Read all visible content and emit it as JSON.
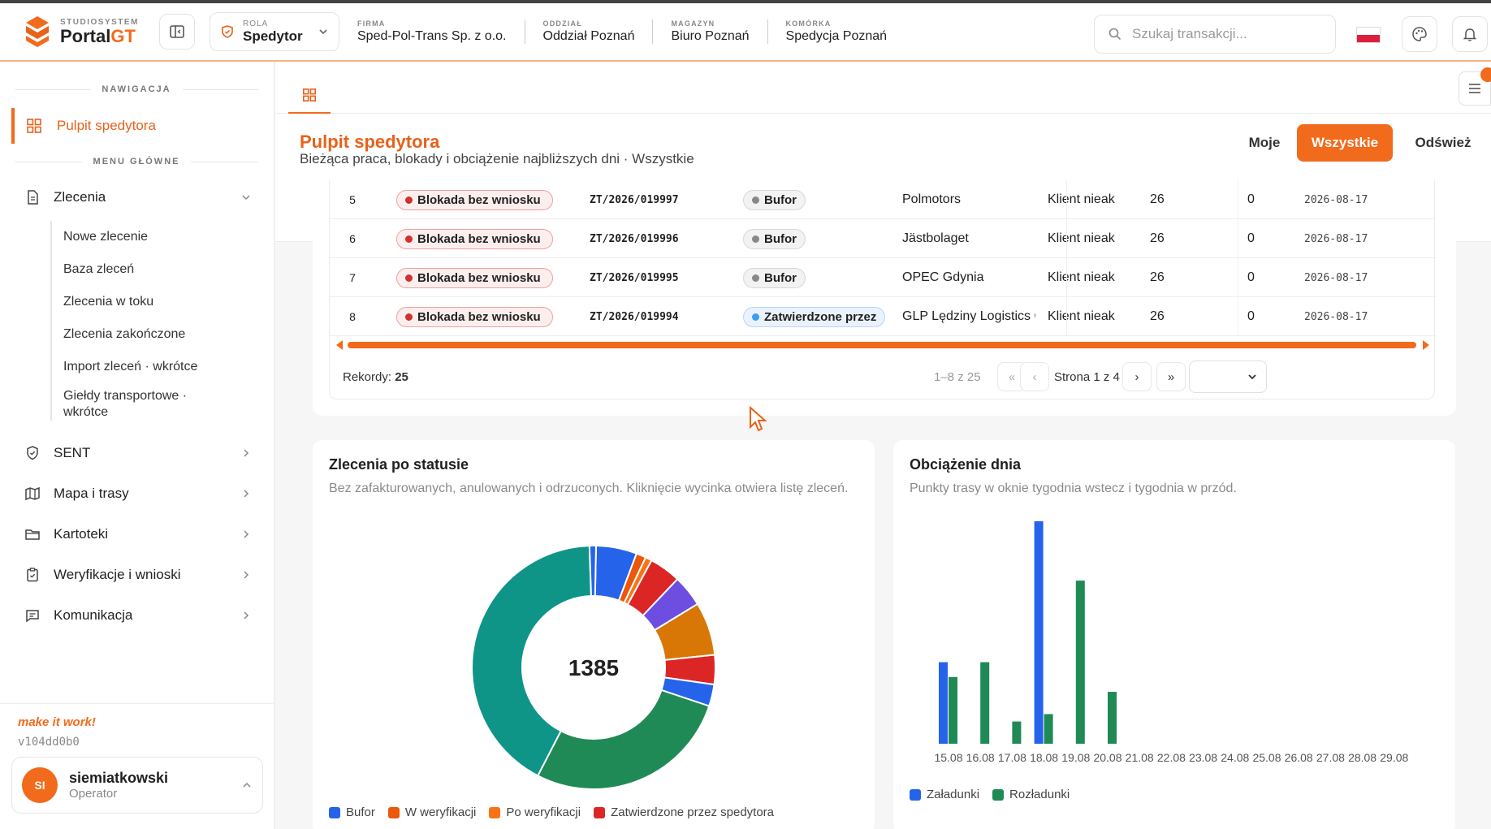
{
  "brand": {
    "small": "STUDIOSYSTEM",
    "name": "Portal",
    "name_accent": "GT"
  },
  "header": {
    "role_label": "ROLA",
    "role_value": "Spedytor",
    "firma_label": "FIRMA",
    "firma_value": "Sped-Pol-Trans Sp. z o.o.",
    "oddzial_label": "ODDZIAŁ",
    "oddzial_value": "Oddział Poznań",
    "magazyn_label": "MAGAZYN",
    "magazyn_value": "Biuro Poznań",
    "komorka_label": "KOMÓRKA",
    "komorka_value": "Spedycja Poznań",
    "search_placeholder": "Szukaj transakcji..."
  },
  "sidebar": {
    "nav_label": "NAWIGACJA",
    "active_item": "Pulpit spedytora",
    "menu_label": "MENU GŁÓWNE",
    "zlecenia": "Zlecenia",
    "sub_items": [
      "Nowe zlecenie",
      "Baza zleceń",
      "Zlecenia w toku",
      "Zlecenia zakończone",
      "Import zleceń · wkrótce",
      "Giełdy transportowe · wkrótce"
    ],
    "items": [
      "SENT",
      "Mapa i trasy",
      "Kartoteki",
      "Weryfikacje i wnioski",
      "Komunikacja"
    ],
    "motto": "make it work!",
    "version": "v104dd0b0",
    "user": {
      "initials": "SI",
      "name": "siemiatkowski",
      "role": "Operator"
    }
  },
  "page": {
    "title": "Pulpit spedytora",
    "subtitle": "Bieżąca praca, blokady i obciążenie najbliższych dni · Wszystkie",
    "btn_moje": "Moje",
    "btn_all": "Wszystkie",
    "btn_refresh": "Odśwież"
  },
  "table": {
    "rows": [
      {
        "num": "5",
        "flag": "Blokada bez wniosku",
        "zt": "ZT/2026/019997",
        "status": "Bufor",
        "client": "Polmotors",
        "kl": "Klient nieak",
        "n1": "26",
        "n2": "0",
        "date": "2026-08-17"
      },
      {
        "num": "6",
        "flag": "Blokada bez wniosku",
        "zt": "ZT/2026/019996",
        "status": "Bufor",
        "client": "Jästbolaget",
        "kl": "Klient nieak",
        "n1": "26",
        "n2": "0",
        "date": "2026-08-17"
      },
      {
        "num": "7",
        "flag": "Blokada bez wniosku",
        "zt": "ZT/2026/019995",
        "status": "Bufor",
        "client": "OPEC Gdynia",
        "kl": "Klient nieak",
        "n1": "26",
        "n2": "0",
        "date": "2026-08-17"
      },
      {
        "num": "8",
        "flag": "Blokada bez wniosku",
        "zt": "ZT/2026/019994",
        "status": "Zatwierdzone przez",
        "client": "GLP Lędziny Logistics C",
        "kl": "Klient nieak",
        "n1": "26",
        "n2": "0",
        "date": "2026-08-17"
      }
    ],
    "records_label": "Rekordy:",
    "records_value": "25",
    "range": "1–8 z 25",
    "page_text": "Strona 1 z 4"
  },
  "donut_card": {
    "title": "Zlecenia po statusie",
    "subtitle": "Bez zafakturowanych, anulowanych i odrzuconych. Kliknięcie wycinka otwiera listę zleceń.",
    "total": "1385",
    "legend": [
      {
        "label": "Bufor",
        "color": "#2563eb"
      },
      {
        "label": "W weryfikacji",
        "color": "#ea580c"
      },
      {
        "label": "Po weryfikacji",
        "color": "#f97316"
      },
      {
        "label": "Zatwierdzone przez spedytora",
        "color": "#dc2626"
      }
    ]
  },
  "bar_card": {
    "title": "Obciążenie dnia",
    "subtitle": "Punkty trasy w oknie tygodnia wstecz i tygodnia w przód.",
    "legend": [
      {
        "label": "Załadunki",
        "color": "#2563eb"
      },
      {
        "label": "Rozładunki",
        "color": "#1f8a55"
      }
    ]
  },
  "chart_data": [
    {
      "type": "pie",
      "title": "Zlecenia po statusie",
      "total": 1385,
      "slices": [
        {
          "color": "#2563eb",
          "value": 75
        },
        {
          "color": "#ea580c",
          "value": 18
        },
        {
          "color": "#f97316",
          "value": 12
        },
        {
          "color": "#dc2626",
          "value": 58
        },
        {
          "color": "#6d4ee0",
          "value": 58
        },
        {
          "color": "#d97706",
          "value": 98
        },
        {
          "color": "#dc2626",
          "value": 54
        },
        {
          "color": "#2563eb",
          "value": 40
        },
        {
          "color": "#1f8a55",
          "value": 380
        },
        {
          "color": "#0f9488",
          "value": 580
        },
        {
          "color": "#2563eb",
          "value": 12
        }
      ]
    },
    {
      "type": "bar",
      "title": "Obciążenie dnia",
      "categories": [
        "15.08",
        "16.08",
        "17.08",
        "18.08",
        "19.08",
        "20.08",
        "21.08",
        "22.08",
        "23.08",
        "24.08",
        "25.08",
        "26.08",
        "27.08",
        "28.08",
        "29.08"
      ],
      "series": [
        {
          "name": "Załadunki",
          "color": "#2563eb",
          "values": [
            11,
            0,
            0,
            30,
            0,
            0,
            0,
            0,
            0,
            0,
            0,
            0,
            0,
            0,
            0
          ]
        },
        {
          "name": "Rozładunki",
          "color": "#1f8a55",
          "values": [
            9,
            11,
            3,
            4,
            22,
            7,
            0,
            0,
            0,
            0,
            0,
            0,
            0,
            0,
            0
          ]
        }
      ],
      "ylim": [
        0,
        30
      ]
    }
  ]
}
